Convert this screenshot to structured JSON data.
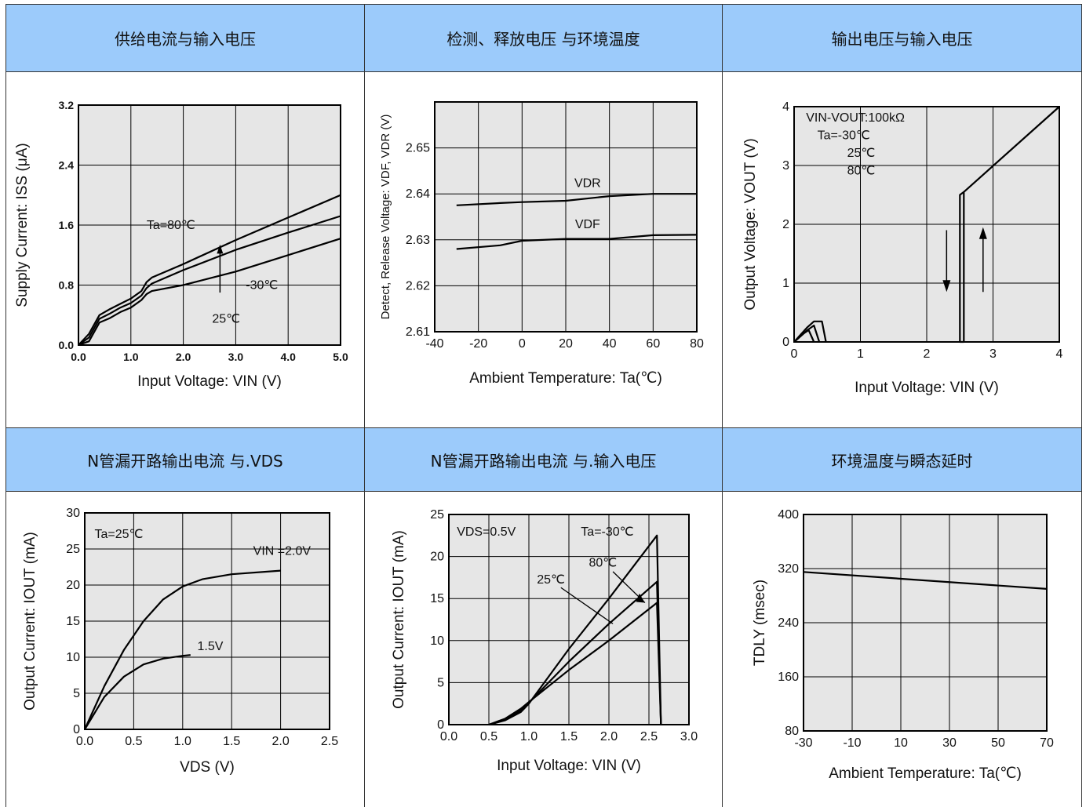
{
  "headers": [
    "供给电流与输入电压",
    "检测、释放电压 与环境温度",
    "输出电压与输入电压",
    "N管漏开路输出电流 与.VDS",
    "N管漏开路输出电流 与.输入电压",
    "环境温度与瞬态延时"
  ],
  "chart_data": [
    {
      "type": "line",
      "xlabel": "Input Voltage: VIN (V)",
      "ylabel": "Supply Current: ISS (μA)",
      "xlim": [
        0,
        5
      ],
      "ylim": [
        0,
        3.2
      ],
      "x_ticks": [
        "0.0",
        "1.0",
        "2.0",
        "3.0",
        "4.0",
        "5.0"
      ],
      "y_ticks": [
        "0.0",
        "0.8",
        "1.6",
        "2.4",
        "3.2"
      ],
      "annotations": [
        "Ta=80℃",
        "25℃",
        "-30℃"
      ],
      "series": [
        {
          "name": "Ta=80℃",
          "x": [
            0,
            0.2,
            0.4,
            0.6,
            0.8,
            1.0,
            1.2,
            1.3,
            1.4,
            2,
            3,
            4,
            5
          ],
          "y": [
            0,
            0.15,
            0.4,
            0.48,
            0.55,
            0.62,
            0.72,
            0.84,
            0.9,
            1.08,
            1.4,
            1.7,
            2.0
          ]
        },
        {
          "name": "25℃",
          "x": [
            0,
            0.2,
            0.4,
            0.6,
            0.8,
            1.0,
            1.2,
            1.3,
            1.4,
            2,
            3,
            4,
            5
          ],
          "y": [
            0,
            0.1,
            0.35,
            0.42,
            0.5,
            0.56,
            0.66,
            0.76,
            0.82,
            1.0,
            1.27,
            1.5,
            1.72
          ]
        },
        {
          "name": "-30℃",
          "x": [
            0,
            0.2,
            0.4,
            0.6,
            0.8,
            1.0,
            1.2,
            1.3,
            1.4,
            2,
            3,
            4,
            5
          ],
          "y": [
            0,
            0.05,
            0.3,
            0.36,
            0.44,
            0.5,
            0.6,
            0.68,
            0.72,
            0.8,
            0.98,
            1.2,
            1.42
          ]
        }
      ]
    },
    {
      "type": "line",
      "xlabel": "Ambient Temperature: Ta(℃)",
      "ylabel": "Detect, Release Voltage: VDF, VDR (V)",
      "xlim": [
        -40,
        80
      ],
      "ylim": [
        2.61,
        2.66
      ],
      "x_ticks": [
        "-40",
        "-20",
        "0",
        "20",
        "40",
        "60",
        "80"
      ],
      "y_ticks": [
        "2.61",
        "2.62",
        "2.63",
        "2.64",
        "2.65"
      ],
      "series": [
        {
          "name": "VDR",
          "x": [
            -30,
            -10,
            0,
            20,
            40,
            60,
            80
          ],
          "y": [
            2.6375,
            2.638,
            2.6382,
            2.6385,
            2.6395,
            2.64,
            2.64
          ]
        },
        {
          "name": "VDF",
          "x": [
            -30,
            -10,
            0,
            20,
            40,
            60,
            80
          ],
          "y": [
            2.628,
            2.6288,
            2.6298,
            2.6302,
            2.6302,
            2.631,
            2.6311
          ]
        }
      ]
    },
    {
      "type": "line",
      "xlabel": "Input Voltage: VIN (V)",
      "ylabel": "Output Voltage: VOUT (V)",
      "xlim": [
        0,
        4
      ],
      "ylim": [
        0,
        4
      ],
      "x_ticks": [
        "0",
        "1",
        "2",
        "3",
        "4"
      ],
      "y_ticks": [
        "0",
        "1",
        "2",
        "3",
        "4"
      ],
      "annotations": [
        "VIN-VOUT:100kΩ",
        "Ta=-30℃",
        "25℃",
        "80℃"
      ],
      "series": [
        {
          "name": "rise",
          "x": [
            2.5,
            2.56,
            2.56,
            4
          ],
          "y": [
            0,
            0,
            2.55,
            4
          ]
        },
        {
          "name": "fall",
          "x": [
            2.5,
            2.5,
            2.56
          ],
          "y": [
            0,
            2.5,
            2.55
          ]
        },
        {
          "name": "hump1",
          "x": [
            0,
            0.2,
            0.3,
            0.42,
            0.48
          ],
          "y": [
            0,
            0.25,
            0.35,
            0.35,
            0
          ]
        },
        {
          "name": "hump2",
          "x": [
            0,
            0.2,
            0.3,
            0.38
          ],
          "y": [
            0,
            0.2,
            0.28,
            0
          ]
        },
        {
          "name": "hump3",
          "x": [
            0,
            0.15,
            0.22,
            0.3
          ],
          "y": [
            0,
            0.15,
            0.2,
            0
          ]
        }
      ]
    },
    {
      "type": "line",
      "xlabel": "VDS (V)",
      "ylabel": "Output Current: IOUT (mA)",
      "xlim": [
        0,
        2.5
      ],
      "ylim": [
        0,
        30
      ],
      "x_ticks": [
        "0.0",
        "0.5",
        "1.0",
        "1.5",
        "2.0",
        "2.5"
      ],
      "y_ticks": [
        "0",
        "5",
        "10",
        "15",
        "20",
        "25",
        "30"
      ],
      "annotations": [
        "Ta=25℃",
        "VIN =2.0V",
        "1.5V"
      ],
      "series": [
        {
          "name": "VIN =2.0V",
          "x": [
            0,
            0.2,
            0.4,
            0.6,
            0.8,
            1.0,
            1.2,
            1.5,
            2.0
          ],
          "y": [
            0,
            6,
            11,
            15,
            18,
            19.8,
            20.8,
            21.5,
            22
          ]
        },
        {
          "name": "1.5V",
          "x": [
            0,
            0.2,
            0.4,
            0.6,
            0.8,
            1.0,
            1.08
          ],
          "y": [
            0,
            4.5,
            7.3,
            9,
            9.8,
            10.2,
            10.3
          ]
        }
      ]
    },
    {
      "type": "line",
      "xlabel": "Input Voltage: VIN (V)",
      "ylabel": "Output Current: IOUT (mA)",
      "xlim": [
        0,
        3
      ],
      "ylim": [
        0,
        25
      ],
      "x_ticks": [
        "0.0",
        "0.5",
        "1.0",
        "1.5",
        "2.0",
        "2.5",
        "3.0"
      ],
      "y_ticks": [
        "0",
        "5",
        "10",
        "15",
        "20",
        "25"
      ],
      "annotations": [
        "VDS=0.5V",
        "Ta=-30℃",
        "80℃",
        "25℃"
      ],
      "series": [
        {
          "name": "Ta=-30℃",
          "x": [
            0.5,
            0.7,
            0.9,
            1.0,
            1.5,
            2.0,
            2.6,
            2.65
          ],
          "y": [
            0,
            0.5,
            1.5,
            2.5,
            9,
            15,
            22.5,
            0
          ]
        },
        {
          "name": "25℃",
          "x": [
            0.5,
            0.7,
            0.9,
            1.0,
            1.5,
            2.0,
            2.6,
            2.65
          ],
          "y": [
            0,
            0.6,
            1.7,
            2.6,
            7.5,
            12,
            17,
            0
          ]
        },
        {
          "name": "80℃",
          "x": [
            0.5,
            0.7,
            0.9,
            1.0,
            1.5,
            2.0,
            2.6,
            2.65
          ],
          "y": [
            0,
            0.7,
            1.9,
            2.7,
            6.5,
            10,
            14.5,
            0
          ]
        }
      ]
    },
    {
      "type": "line",
      "xlabel": "Ambient Temperature: Ta(℃)",
      "ylabel": "TDLY (msec)",
      "xlim": [
        -30,
        70
      ],
      "ylim": [
        80,
        400
      ],
      "x_ticks": [
        "-30",
        "-10",
        "10",
        "30",
        "50",
        "70"
      ],
      "y_ticks": [
        "80",
        "160",
        "240",
        "320",
        "400"
      ],
      "series": [
        {
          "name": "",
          "x": [
            -30,
            70
          ],
          "y": [
            315,
            290
          ]
        }
      ]
    }
  ]
}
